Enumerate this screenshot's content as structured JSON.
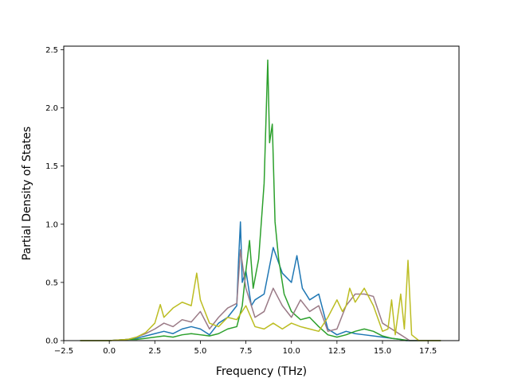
{
  "chart_data": {
    "type": "line",
    "title": "",
    "xlabel": "Frequency (THz)",
    "ylabel": "Partial Density of States",
    "xlim": [
      -2.5,
      19.2
    ],
    "ylim": [
      0,
      2.53
    ],
    "xticks": [
      -2.5,
      0.0,
      2.5,
      5.0,
      7.5,
      10.0,
      12.5,
      15.0,
      17.5
    ],
    "xtick_labels": [
      "−2.5",
      "0.0",
      "2.5",
      "5.0",
      "7.5",
      "10.0",
      "12.5",
      "15.0",
      "17.5"
    ],
    "yticks": [
      0.0,
      0.5,
      1.0,
      1.5,
      2.0,
      2.5
    ],
    "ytick_labels": [
      "0.0",
      "0.5",
      "1.0",
      "1.5",
      "2.0",
      "2.5"
    ],
    "grid": false,
    "legend": "none",
    "series": [
      {
        "color": "#1f77b4",
        "x": [
          -1.6,
          0,
          1,
          1.5,
          2,
          2.5,
          3,
          3.5,
          4,
          4.5,
          5,
          5.5,
          6,
          6.5,
          7,
          7.1,
          7.2,
          7.3,
          7.5,
          7.8,
          8,
          8.5,
          9,
          9.5,
          10,
          10.3,
          10.6,
          11,
          11.5,
          12,
          12.5,
          13,
          13.5,
          14,
          14.5,
          15,
          15.5,
          16,
          16.3,
          16.5,
          17,
          18.2
        ],
        "y": [
          0,
          0,
          0.01,
          0.02,
          0.04,
          0.06,
          0.08,
          0.06,
          0.1,
          0.12,
          0.1,
          0.05,
          0.15,
          0.2,
          0.3,
          0.7,
          1.02,
          0.5,
          0.6,
          0.3,
          0.35,
          0.4,
          0.8,
          0.58,
          0.5,
          0.73,
          0.45,
          0.35,
          0.4,
          0.1,
          0.05,
          0.08,
          0.06,
          0.05,
          0.04,
          0.03,
          0.02,
          0.01,
          0,
          0,
          0,
          0
        ]
      },
      {
        "color": "#2ca02c",
        "x": [
          -1.6,
          0,
          1,
          1.5,
          2,
          2.5,
          3,
          3.5,
          4,
          4.5,
          5,
          5.5,
          6,
          6.5,
          7,
          7.3,
          7.5,
          7.7,
          7.9,
          8.2,
          8.5,
          8.7,
          8.8,
          8.95,
          9.1,
          9.3,
          9.6,
          10,
          10.5,
          11,
          11.5,
          12,
          12.5,
          13,
          13.5,
          14,
          14.5,
          15,
          15.5,
          16,
          16.5,
          17,
          18.2
        ],
        "y": [
          0,
          0,
          0.01,
          0.01,
          0.02,
          0.03,
          0.04,
          0.03,
          0.05,
          0.06,
          0.05,
          0.04,
          0.06,
          0.1,
          0.12,
          0.3,
          0.6,
          0.86,
          0.45,
          0.7,
          1.35,
          2.41,
          1.7,
          1.86,
          1.02,
          0.7,
          0.4,
          0.25,
          0.18,
          0.2,
          0.12,
          0.05,
          0.03,
          0.05,
          0.08,
          0.1,
          0.08,
          0.04,
          0.02,
          0.01,
          0,
          0,
          0
        ]
      },
      {
        "color": "#9a7a86",
        "x": [
          -1.6,
          0,
          1,
          1.5,
          2,
          2.5,
          3,
          3.5,
          4,
          4.5,
          5,
          5.5,
          6,
          6.5,
          7,
          7.2,
          7.5,
          8,
          8.5,
          9,
          9.5,
          10,
          10.5,
          11,
          11.5,
          12,
          12.5,
          13,
          13.5,
          14,
          14.5,
          15,
          15.5,
          16,
          16.3,
          16.5,
          17,
          18.2
        ],
        "y": [
          0,
          0,
          0.01,
          0.03,
          0.06,
          0.1,
          0.15,
          0.12,
          0.18,
          0.16,
          0.25,
          0.1,
          0.2,
          0.28,
          0.32,
          0.78,
          0.45,
          0.2,
          0.25,
          0.45,
          0.3,
          0.2,
          0.35,
          0.25,
          0.3,
          0.08,
          0.1,
          0.3,
          0.4,
          0.4,
          0.38,
          0.15,
          0.1,
          0.05,
          0.02,
          0,
          0,
          0
        ]
      },
      {
        "color": "#bcbd22",
        "x": [
          -1.6,
          0,
          1,
          1.5,
          2,
          2.5,
          2.8,
          3,
          3.5,
          4,
          4.5,
          4.8,
          5,
          5.5,
          6,
          6.5,
          7,
          7.5,
          8,
          8.5,
          9,
          9.5,
          10,
          10.5,
          11,
          11.5,
          12,
          12.5,
          12.8,
          13,
          13.2,
          13.5,
          14,
          14.5,
          15,
          15.3,
          15.5,
          15.7,
          16,
          16.2,
          16.4,
          16.6,
          17,
          18.2
        ],
        "y": [
          0,
          0,
          0.01,
          0.03,
          0.07,
          0.15,
          0.31,
          0.2,
          0.28,
          0.33,
          0.3,
          0.58,
          0.35,
          0.15,
          0.12,
          0.2,
          0.18,
          0.3,
          0.12,
          0.1,
          0.15,
          0.1,
          0.15,
          0.12,
          0.1,
          0.08,
          0.2,
          0.35,
          0.25,
          0.3,
          0.45,
          0.33,
          0.45,
          0.3,
          0.08,
          0.1,
          0.35,
          0.05,
          0.4,
          0.1,
          0.69,
          0.05,
          0,
          0
        ]
      }
    ]
  }
}
